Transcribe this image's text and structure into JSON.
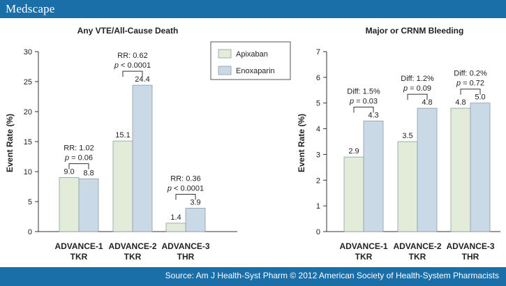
{
  "header": {
    "brand": "Medscape"
  },
  "footer": {
    "source": "Source: Am J Health-Syst Pharm © 2012 American Society of Health-System Pharmacists"
  },
  "colors": {
    "header_bar": "#1a6fa8",
    "apixaban": "#e3ecd8",
    "enoxaparin": "#c9d9e6",
    "bar_stroke": "#8a9aa6"
  },
  "legend": {
    "items": [
      {
        "label": "Apixaban"
      },
      {
        "label": "Enoxaparin"
      }
    ]
  },
  "chart_data": [
    {
      "type": "bar",
      "title": "Any VTE/All-Cause Death",
      "ylabel": "Event Rate (%)",
      "ylim": [
        0,
        30
      ],
      "yticks": [
        "0",
        "5",
        "10",
        "15",
        "20",
        "25",
        "30"
      ],
      "categories": [
        [
          "ADVANCE-1",
          "TKR"
        ],
        [
          "ADVANCE-2",
          "TKR"
        ],
        [
          "ADVANCE-3",
          "THR"
        ]
      ],
      "series": [
        {
          "name": "Apixaban",
          "values": [
            9.0,
            15.1,
            1.4
          ],
          "labels": [
            "9.0",
            "15.1",
            "1.4"
          ]
        },
        {
          "name": "Enoxaparin",
          "values": [
            8.8,
            24.4,
            3.9
          ],
          "labels": [
            "8.8",
            "24.4",
            "3.9"
          ]
        }
      ],
      "annotations": [
        {
          "line1": "RR: 1.02",
          "p_label": "p",
          "p_value": " = 0.06"
        },
        {
          "line1": "RR: 0.62",
          "p_label": "p",
          "p_value": " < 0.0001"
        },
        {
          "line1": "RR: 0.36",
          "p_label": "p",
          "p_value": " < 0.0001"
        }
      ]
    },
    {
      "type": "bar",
      "title": "Major or CRNM Bleeding",
      "ylabel": "Event Rate (%)",
      "ylim": [
        0,
        7
      ],
      "yticks": [
        "0",
        "1",
        "2",
        "3",
        "4",
        "5",
        "6",
        "7"
      ],
      "categories": [
        [
          "ADVANCE-1",
          "TKR"
        ],
        [
          "ADVANCE-2",
          "TKR"
        ],
        [
          "ADVANCE-3",
          "THR"
        ]
      ],
      "series": [
        {
          "name": "Apixaban",
          "values": [
            2.9,
            3.5,
            4.8
          ],
          "labels": [
            "2.9",
            "3.5",
            "4.8"
          ]
        },
        {
          "name": "Enoxaparin",
          "values": [
            4.3,
            4.8,
            5.0
          ],
          "labels": [
            "4.3",
            "4.8",
            "5.0"
          ]
        }
      ],
      "annotations": [
        {
          "line1": "Diff: 1.5%",
          "p_label": "p",
          "p_value": " = 0.03"
        },
        {
          "line1": "Diff: 1.2%",
          "p_label": "p",
          "p_value": " = 0.09"
        },
        {
          "line1": "Diff: 0.2%",
          "p_label": "p",
          "p_value": " = 0.72"
        }
      ]
    }
  ]
}
